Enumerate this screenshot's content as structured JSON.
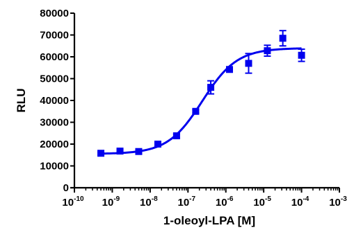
{
  "chart_data": {
    "type": "scatter",
    "xlabel": "1-oleoyl-LPA [M]",
    "ylabel": "RLU",
    "xscale": "log",
    "xlim": [
      1e-10,
      0.001
    ],
    "ylim": [
      0,
      80000
    ],
    "x_ticks": [
      {
        "base": "10",
        "exp": "-10",
        "value": 1e-10
      },
      {
        "base": "10",
        "exp": "-9",
        "value": 1e-09
      },
      {
        "base": "10",
        "exp": "-8",
        "value": 1e-08
      },
      {
        "base": "10",
        "exp": "-7",
        "value": 1e-07
      },
      {
        "base": "10",
        "exp": "-6",
        "value": 1e-06
      },
      {
        "base": "10",
        "exp": "-5",
        "value": 1e-05
      },
      {
        "base": "10",
        "exp": "-4",
        "value": 0.0001
      },
      {
        "base": "10",
        "exp": "-3",
        "value": 0.001
      }
    ],
    "y_ticks": [
      "0",
      "10000",
      "20000",
      "30000",
      "40000",
      "50000",
      "60000",
      "70000",
      "80000"
    ],
    "grid": false,
    "legend": "none",
    "color": "#0000ee",
    "series": [
      {
        "points": [
          {
            "x": 5e-10,
            "y": 15800,
            "err": 500
          },
          {
            "x": 1.6e-09,
            "y": 16800,
            "err": 600
          },
          {
            "x": 5e-09,
            "y": 16600,
            "err": 500
          },
          {
            "x": 1.6e-08,
            "y": 20000,
            "err": 500
          },
          {
            "x": 5e-08,
            "y": 23800,
            "err": 800
          },
          {
            "x": 1.6e-07,
            "y": 35000,
            "err": 800
          },
          {
            "x": 4e-07,
            "y": 46000,
            "err": 3000
          },
          {
            "x": 1.25e-06,
            "y": 54200,
            "err": 800
          },
          {
            "x": 4e-06,
            "y": 57000,
            "err": 4500
          },
          {
            "x": 1.25e-05,
            "y": 62800,
            "err": 2500
          },
          {
            "x": 3.2e-05,
            "y": 68500,
            "err": 3500
          },
          {
            "x": 0.0001,
            "y": 60700,
            "err": 2800
          }
        ],
        "fit": {
          "model": "sigmoidal dose-response",
          "bottom": 15500,
          "top": 64000,
          "log_ec50": -6.62,
          "hill": 0.95
        }
      }
    ]
  }
}
